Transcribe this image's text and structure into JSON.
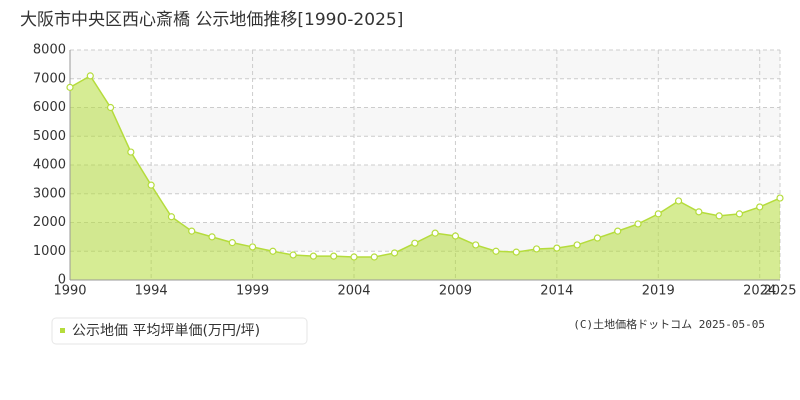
{
  "chart_data": {
    "type": "area",
    "title": "大阪市中央区西心斎橋 公示地価推移[1990-2025]",
    "credit": "(C)土地価格ドットコム 2025-05-05",
    "x": [
      1990,
      1991,
      1992,
      1993,
      1994,
      1995,
      1996,
      1997,
      1998,
      1999,
      2000,
      2001,
      2002,
      2003,
      2004,
      2005,
      2006,
      2007,
      2008,
      2009,
      2010,
      2011,
      2012,
      2013,
      2014,
      2015,
      2016,
      2017,
      2018,
      2019,
      2020,
      2021,
      2022,
      2023,
      2024,
      2025
    ],
    "series": [
      {
        "name": "公示地価 平均坪単価(万円/坪)",
        "color": "#b5dc3c",
        "values": [
          6700,
          7100,
          6000,
          4450,
          3300,
          2200,
          1700,
          1500,
          1300,
          1150,
          1000,
          870,
          830,
          830,
          800,
          800,
          940,
          1280,
          1630,
          1530,
          1220,
          1000,
          970,
          1080,
          1110,
          1220,
          1460,
          1700,
          1950,
          2300,
          2750,
          2370,
          2230,
          2300,
          2540,
          2850
        ]
      }
    ],
    "xlim": [
      1990,
      2025
    ],
    "xticks": [
      1990,
      1994,
      1999,
      2004,
      2009,
      2014,
      2019,
      2024,
      2025
    ],
    "ylim": [
      0,
      8000
    ],
    "yticks": [
      0,
      1000,
      2000,
      3000,
      4000,
      5000,
      6000,
      7000,
      8000
    ],
    "grid": true
  }
}
